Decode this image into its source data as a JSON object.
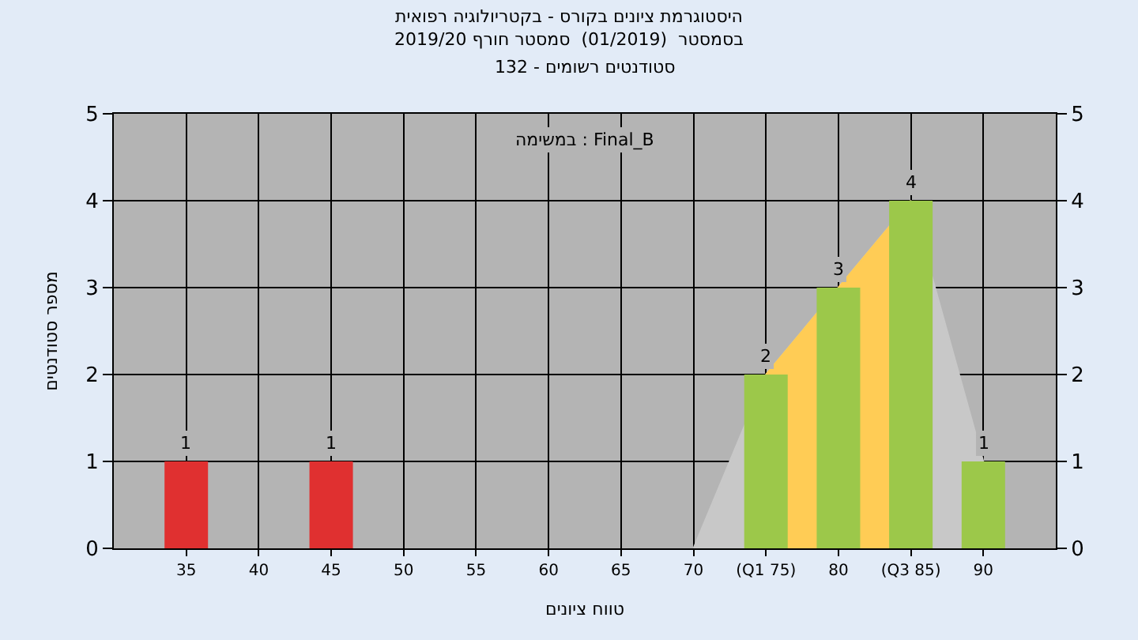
{
  "chart_data": {
    "type": "bar",
    "title": "היסטוגרמת ציונים בקורס - בקטריולוגיה רפואית",
    "subtitle": "בסמסטר  (01/2019)  סמסטר חורף 2019/20",
    "xlabel": "טווח ציונים",
    "ylabel": "מספר סטודנטים",
    "annotations": [
      "סטודנטים רשומים - 132",
      "במשימה : Final_B"
    ],
    "series": [
      {
        "type": "area",
        "color": "#c8c8c8",
        "x": [
          70,
          75,
          80,
          85,
          90
        ],
        "values": [
          0,
          2,
          3,
          4,
          1
        ]
      },
      {
        "type": "area",
        "color": "#ffcc55",
        "x": [
          75,
          80,
          85
        ],
        "values": [
          2,
          3,
          4
        ]
      },
      {
        "x": [
          35,
          45,
          75,
          80,
          85,
          90
        ],
        "values": [
          1,
          1,
          2,
          3,
          4,
          1
        ],
        "value_labels": [
          "1",
          "1",
          "2",
          "3",
          "4",
          "1"
        ],
        "colors": [
          "#e03030",
          "#e03030",
          "#9cc84a",
          "#9cc84a",
          "#9cc84a",
          "#9cc84a"
        ]
      }
    ],
    "xlim": [
      30,
      95
    ],
    "xticks": [
      35,
      40,
      45,
      50,
      55,
      60,
      65,
      70,
      {
        "value": 75,
        "label": "(Q1 75)"
      },
      80,
      {
        "value": 85,
        "label": "(Q3 85)"
      },
      90
    ],
    "ylim": [
      0,
      5
    ],
    "yticks": [
      0,
      1,
      2,
      3,
      4,
      5
    ],
    "y2lim": [
      0,
      5
    ],
    "y2ticks": [
      0,
      1,
      2,
      3,
      4,
      5
    ],
    "grid": true
  }
}
